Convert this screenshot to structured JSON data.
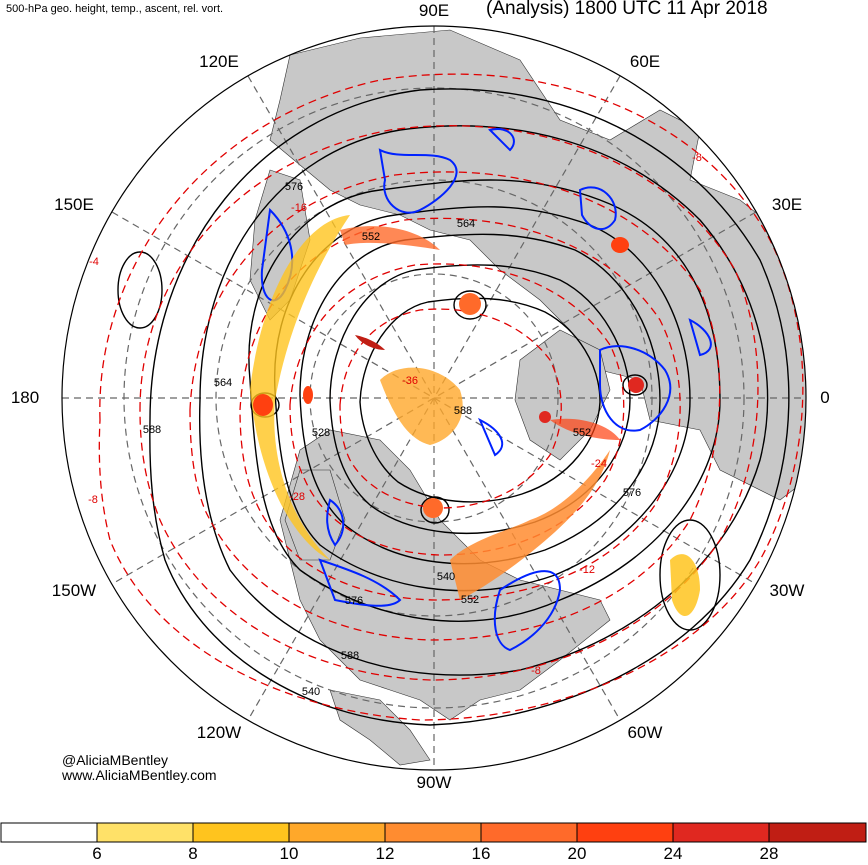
{
  "header": {
    "left_title": "500-hPa geo. height, temp., ascent, rel. vort.",
    "right_title": "(Analysis) 1800 UTC 11 Apr 2018"
  },
  "credits": {
    "twitter": "@AliciaMBentley",
    "website": "www.AliciaMBentley.com"
  },
  "longitude_labels": {
    "lon_90E": "90E",
    "lon_120E": "120E",
    "lon_60E": "60E",
    "lon_150E": "150E",
    "lon_30E": "30E",
    "lon_180": "180",
    "lon_0": "0",
    "lon_150W": "150W",
    "lon_30W": "30W",
    "lon_120W": "120W",
    "lon_60W": "60W",
    "lon_90W": "90W"
  },
  "height_contour_labels": [
    "564",
    "576",
    "552",
    "540",
    "528",
    "588",
    "576",
    "552",
    "564",
    "540",
    "552",
    "576",
    "588",
    "588"
  ],
  "temperature_contour_labels": [
    "-4",
    "-8",
    "-12",
    "-16",
    "-20",
    "-24",
    "-28",
    "-32",
    "-36"
  ],
  "colorbar": {
    "variable": "relative vorticity shading",
    "ticks": [
      "6",
      "8",
      "10",
      "12",
      "16",
      "20",
      "24",
      "28"
    ],
    "colors": [
      "#ffffff",
      "#ffe168",
      "#ffc41e",
      "#ffa82a",
      "#ff8c30",
      "#ff6a2a",
      "#ff4010",
      "#e02820",
      "#c01e14"
    ]
  },
  "layer_colors": {
    "height_contours": "#000000",
    "temperature_contours": "#e00000",
    "ascent": "#0022ff",
    "land": "#c8c8c8",
    "graticule": "#666666"
  }
}
